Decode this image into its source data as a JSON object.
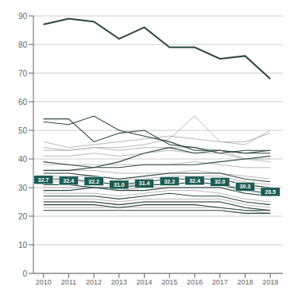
{
  "chart_data": {
    "type": "line",
    "x": [
      2010,
      2011,
      2012,
      2013,
      2014,
      2015,
      2016,
      2017,
      2018,
      2019
    ],
    "xlim": [
      2009.6,
      2019.5
    ],
    "xticks": [
      2010,
      2011,
      2012,
      2013,
      2014,
      2015,
      2016,
      2017,
      2018,
      2019
    ],
    "ylim": [
      0,
      90
    ],
    "yticks": [
      0,
      10,
      20,
      30,
      40,
      50,
      60,
      70,
      80,
      90
    ],
    "grid": true,
    "series": [
      {
        "type": "line",
        "color": "#b0b0b0",
        "values": [
          46,
          44,
          45,
          46,
          47,
          48,
          47,
          46,
          46,
          49
        ]
      },
      {
        "type": "line",
        "color": "#b0b0b0",
        "values": [
          44,
          43,
          44,
          44,
          45,
          47,
          55,
          46,
          45,
          50
        ]
      },
      {
        "type": "line",
        "color": "#b0b0b0",
        "values": [
          43,
          43,
          44,
          43,
          44,
          44,
          44,
          43,
          40,
          40
        ]
      },
      {
        "type": "line",
        "color": "#b0b0b0",
        "values": [
          41,
          41,
          42,
          41,
          42,
          43,
          42,
          42,
          40,
          39
        ]
      },
      {
        "type": "line",
        "color": "#b0b0b0",
        "values": [
          38,
          38,
          38,
          38,
          38,
          38,
          39,
          38,
          37,
          37
        ]
      },
      {
        "type": "line",
        "color": "#b0b0b0",
        "values": [
          36,
          36,
          36,
          35,
          35,
          35,
          36,
          35,
          34,
          33
        ]
      },
      {
        "type": "line",
        "color": "#b0b0b0",
        "values": [
          34,
          34,
          34,
          33,
          33,
          34,
          34,
          34,
          32,
          31
        ]
      },
      {
        "type": "line",
        "color": "#b0b0b0",
        "values": [
          32,
          32,
          32,
          31,
          31,
          31,
          32,
          31,
          30,
          29
        ]
      },
      {
        "type": "line",
        "color": "#b0b0b0",
        "values": [
          30,
          30,
          30,
          29,
          30,
          30,
          30,
          30,
          28,
          27
        ]
      },
      {
        "type": "line",
        "color": "#b0b0b0",
        "values": [
          28,
          28,
          28,
          27,
          28,
          29,
          29,
          28,
          26,
          25
        ]
      },
      {
        "type": "line",
        "color": "#b0b0b0",
        "values": [
          26,
          26,
          26,
          25,
          26,
          26,
          26,
          26,
          24,
          23
        ]
      },
      {
        "type": "line",
        "color": "#b0b0b0",
        "values": [
          25,
          25,
          25,
          24,
          25,
          25,
          25,
          25,
          23,
          22
        ]
      },
      {
        "type": "line",
        "color": "#b0b0b0",
        "values": [
          23,
          23,
          23,
          23,
          23,
          23,
          23,
          23,
          22,
          21
        ]
      },
      {
        "type": "line",
        "color": "#2a4840",
        "values": [
          54,
          54,
          46,
          49,
          50,
          45,
          44,
          42,
          43,
          43
        ]
      },
      {
        "type": "line",
        "color": "#2a4840",
        "values": [
          53,
          52,
          55,
          50,
          48,
          46,
          43,
          43,
          42,
          42
        ]
      },
      {
        "type": "line",
        "color": "#2a4840",
        "values": [
          39,
          38,
          37,
          39,
          42,
          44,
          42,
          43,
          42,
          43
        ]
      },
      {
        "type": "line",
        "color": "#2a4840",
        "values": [
          36,
          36,
          37,
          37,
          38,
          38,
          38,
          39,
          40,
          41
        ]
      },
      {
        "type": "line",
        "color": "#2a4840",
        "values": [
          35,
          35,
          34,
          33,
          34,
          35,
          35,
          35,
          33,
          32
        ]
      },
      {
        "type": "line",
        "color": "#2a4840",
        "values": [
          33,
          33,
          32,
          31,
          32,
          33,
          33,
          33,
          31,
          30
        ]
      },
      {
        "type": "line",
        "color": "#2a4840",
        "values": [
          31,
          31,
          30,
          30,
          31,
          31,
          32,
          31,
          29,
          28
        ]
      },
      {
        "type": "line",
        "color": "#2a4840",
        "values": [
          29,
          29,
          30,
          29,
          29,
          30,
          30,
          30,
          28,
          27
        ]
      },
      {
        "type": "line",
        "color": "#2a4840",
        "values": [
          27,
          27,
          27,
          26,
          27,
          28,
          27,
          27,
          25,
          24
        ]
      },
      {
        "type": "line",
        "color": "#2a4840",
        "values": [
          25,
          25,
          25,
          24,
          25,
          25,
          25,
          25,
          23,
          22
        ]
      },
      {
        "type": "line",
        "color": "#2a4840",
        "values": [
          24,
          24,
          24,
          23,
          24,
          24,
          24,
          23,
          22,
          22
        ]
      },
      {
        "type": "line",
        "color": "#2a4840",
        "values": [
          22,
          22,
          22,
          22,
          22,
          22,
          22,
          22,
          21,
          21
        ]
      },
      {
        "type": "line",
        "color": "#2a4840",
        "values": [
          87,
          89,
          88,
          82,
          86,
          79,
          79,
          75,
          76,
          68
        ]
      },
      {
        "type": "label",
        "color": "#1a5c52",
        "data_labels": true,
        "values": [
          32.7,
          32.4,
          32.2,
          31.0,
          31.4,
          32.2,
          32.4,
          32.0,
          30.3,
          28.5
        ],
        "value_labels": [
          "32.7",
          "32.4",
          "32.2",
          "31.0",
          "31.4",
          "32.2",
          "32.4",
          "32.0",
          "30.3",
          "28.5"
        ]
      }
    ]
  }
}
